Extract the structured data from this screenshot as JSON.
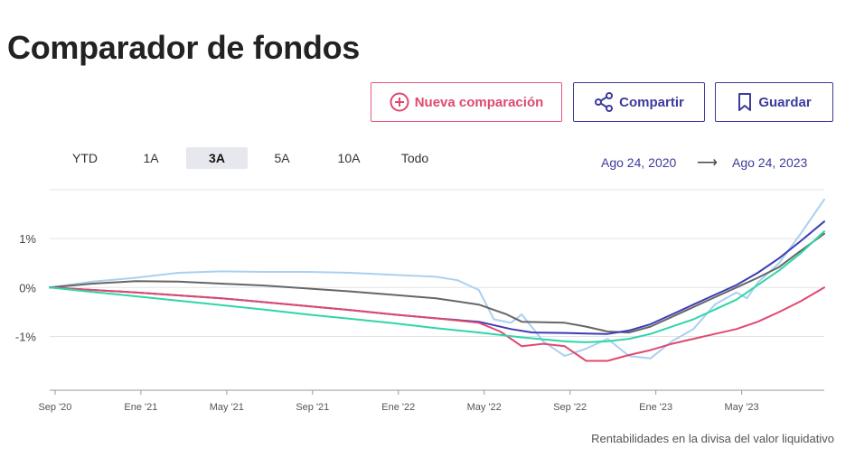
{
  "page": {
    "title": "Comparador de fondos"
  },
  "toolbar": {
    "new_label": "Nueva comparación",
    "share_label": "Compartir",
    "save_label": "Guardar"
  },
  "ranges": [
    {
      "label": "YTD",
      "active": false
    },
    {
      "label": "1A",
      "active": false
    },
    {
      "label": "3A",
      "active": true
    },
    {
      "label": "5A",
      "active": false
    },
    {
      "label": "10A",
      "active": false
    },
    {
      "label": "Todo",
      "active": false
    }
  ],
  "date_range": {
    "from": "Ago 24, 2020",
    "arrow": "⟶",
    "to": "Ago 24, 2023"
  },
  "footnote": "Rentabilidades en la divisa del valor liquidativo",
  "colors": {
    "accent_pink": "#e0496f",
    "accent_navy": "#3c3c9b"
  },
  "chart_data": {
    "type": "line",
    "title": "",
    "xlabel": "",
    "ylabel": "",
    "x_ticks": [
      "Sep '20",
      "Ene '21",
      "May '21",
      "Sep '21",
      "Ene '22",
      "May '22",
      "Sep '22",
      "Ene '23",
      "May '23"
    ],
    "x_tick_months": [
      0.25,
      4.25,
      8.25,
      12.25,
      16.25,
      20.25,
      24.25,
      28.25,
      32.25
    ],
    "x_range_months": [
      0,
      36.1
    ],
    "y_ticks": [
      {
        "value": 1,
        "label": "1%"
      },
      {
        "value": 0,
        "label": "0%"
      },
      {
        "value": -1,
        "label": "-1%"
      }
    ],
    "ylim": [
      -2.1,
      2.0
    ],
    "grid": true,
    "legend": "none",
    "x_unit_note": "months since Ago 24, 2020",
    "series": [
      {
        "color": "#a9d0f0",
        "points": [
          [
            0,
            0
          ],
          [
            2,
            0.12
          ],
          [
            4,
            0.2
          ],
          [
            6,
            0.3
          ],
          [
            8,
            0.33
          ],
          [
            10,
            0.32
          ],
          [
            12,
            0.32
          ],
          [
            14,
            0.3
          ],
          [
            16,
            0.26
          ],
          [
            18,
            0.22
          ],
          [
            19,
            0.15
          ],
          [
            20,
            -0.05
          ],
          [
            20.7,
            -0.65
          ],
          [
            21.5,
            -0.72
          ],
          [
            22,
            -0.55
          ],
          [
            23,
            -1.1
          ],
          [
            24,
            -1.4
          ],
          [
            25,
            -1.25
          ],
          [
            26,
            -1.05
          ],
          [
            27,
            -1.4
          ],
          [
            28,
            -1.45
          ],
          [
            29,
            -1.1
          ],
          [
            30,
            -0.85
          ],
          [
            31,
            -0.35
          ],
          [
            32,
            -0.1
          ],
          [
            32.5,
            -0.22
          ],
          [
            33,
            0.1
          ],
          [
            34,
            0.5
          ],
          [
            35,
            1.1
          ],
          [
            36.1,
            1.8
          ]
        ]
      },
      {
        "color": "#666666",
        "points": [
          [
            0,
            0
          ],
          [
            2,
            0.08
          ],
          [
            4,
            0.13
          ],
          [
            6,
            0.12
          ],
          [
            8,
            0.08
          ],
          [
            10,
            0.04
          ],
          [
            12,
            -0.02
          ],
          [
            14,
            -0.08
          ],
          [
            16,
            -0.15
          ],
          [
            18,
            -0.22
          ],
          [
            20,
            -0.35
          ],
          [
            21.3,
            -0.55
          ],
          [
            22,
            -0.7
          ],
          [
            24,
            -0.72
          ],
          [
            25,
            -0.8
          ],
          [
            26,
            -0.9
          ],
          [
            27,
            -0.92
          ],
          [
            28,
            -0.8
          ],
          [
            29,
            -0.6
          ],
          [
            30,
            -0.4
          ],
          [
            31,
            -0.2
          ],
          [
            32,
            0.0
          ],
          [
            33,
            0.2
          ],
          [
            34,
            0.42
          ],
          [
            35,
            0.75
          ],
          [
            36.1,
            1.1
          ]
        ]
      },
      {
        "color": "#3c3cb4",
        "points": [
          [
            0,
            0
          ],
          [
            2,
            -0.05
          ],
          [
            4,
            -0.1
          ],
          [
            6,
            -0.16
          ],
          [
            8,
            -0.22
          ],
          [
            10,
            -0.3
          ],
          [
            12,
            -0.38
          ],
          [
            14,
            -0.46
          ],
          [
            16,
            -0.55
          ],
          [
            18,
            -0.63
          ],
          [
            20,
            -0.7
          ],
          [
            21.5,
            -0.85
          ],
          [
            22.5,
            -0.92
          ],
          [
            24,
            -0.93
          ],
          [
            25,
            -0.94
          ],
          [
            26,
            -0.95
          ],
          [
            27,
            -0.88
          ],
          [
            28,
            -0.75
          ],
          [
            29,
            -0.55
          ],
          [
            30,
            -0.35
          ],
          [
            31,
            -0.15
          ],
          [
            32,
            0.05
          ],
          [
            33,
            0.3
          ],
          [
            34,
            0.6
          ],
          [
            35,
            0.95
          ],
          [
            36.1,
            1.35
          ]
        ]
      },
      {
        "color": "#e0496f",
        "points": [
          [
            0,
            0
          ],
          [
            2,
            -0.05
          ],
          [
            4,
            -0.1
          ],
          [
            6,
            -0.16
          ],
          [
            8,
            -0.22
          ],
          [
            10,
            -0.3
          ],
          [
            12,
            -0.38
          ],
          [
            14,
            -0.46
          ],
          [
            16,
            -0.55
          ],
          [
            18,
            -0.63
          ],
          [
            20,
            -0.72
          ],
          [
            21,
            -0.9
          ],
          [
            22,
            -1.2
          ],
          [
            23,
            -1.15
          ],
          [
            24,
            -1.2
          ],
          [
            25,
            -1.5
          ],
          [
            26,
            -1.5
          ],
          [
            27,
            -1.38
          ],
          [
            28,
            -1.28
          ],
          [
            29,
            -1.15
          ],
          [
            30,
            -1.05
          ],
          [
            31,
            -0.95
          ],
          [
            32,
            -0.85
          ],
          [
            33,
            -0.7
          ],
          [
            34,
            -0.5
          ],
          [
            35,
            -0.28
          ],
          [
            36.1,
            0.0
          ]
        ]
      },
      {
        "color": "#2fd6a8",
        "points": [
          [
            0,
            0
          ],
          [
            2,
            -0.09
          ],
          [
            4,
            -0.18
          ],
          [
            6,
            -0.27
          ],
          [
            8,
            -0.36
          ],
          [
            10,
            -0.45
          ],
          [
            12,
            -0.55
          ],
          [
            14,
            -0.64
          ],
          [
            16,
            -0.73
          ],
          [
            18,
            -0.83
          ],
          [
            20,
            -0.92
          ],
          [
            22,
            -1.02
          ],
          [
            24,
            -1.1
          ],
          [
            25,
            -1.12
          ],
          [
            26,
            -1.1
          ],
          [
            27,
            -1.05
          ],
          [
            28,
            -0.95
          ],
          [
            29,
            -0.8
          ],
          [
            30,
            -0.65
          ],
          [
            31,
            -0.45
          ],
          [
            32,
            -0.25
          ],
          [
            33,
            0.05
          ],
          [
            34,
            0.35
          ],
          [
            35,
            0.7
          ],
          [
            36.1,
            1.15
          ]
        ]
      }
    ]
  }
}
